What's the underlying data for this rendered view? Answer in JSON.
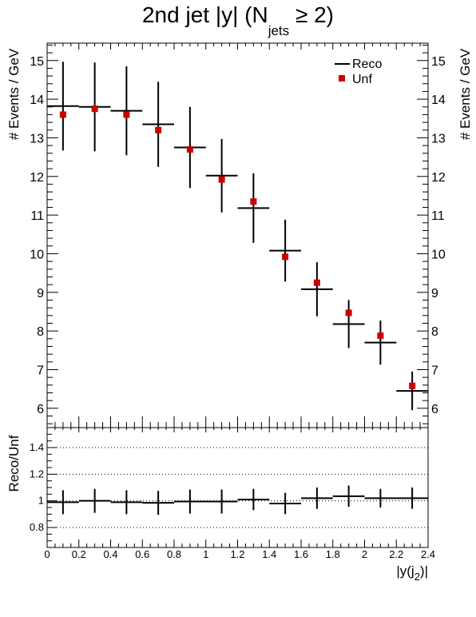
{
  "chart_data": {
    "type": "scatter",
    "title": {
      "prefix": "2nd jet |y| (N",
      "sub": "jets",
      "suffix": " ≥ 2)"
    },
    "xlabel": {
      "prefix": "|y(j",
      "sub": "2",
      "suffix": ")|"
    },
    "ylabel": "# Events / GeV",
    "ratio_ylabel": "Reco/Unf",
    "xlim": [
      0,
      2.4
    ],
    "ylim": [
      5.5,
      15.45
    ],
    "ratio_ylim": [
      0.65,
      1.55
    ],
    "x_ticks": [
      "0",
      "0.2",
      "0.4",
      "0.6",
      "0.8",
      "1",
      "1.2",
      "1.4",
      "1.6",
      "1.8",
      "2",
      "2.2",
      "2.4"
    ],
    "y_ticks": [
      "6",
      "7",
      "8",
      "9",
      "10",
      "11",
      "12",
      "13",
      "14",
      "15"
    ],
    "ratio_y_ticks": [
      "0.8",
      "1",
      "1.2",
      "1.4"
    ],
    "legend": {
      "position": "top-right",
      "entries": [
        "Reco",
        "Unf"
      ]
    },
    "colors": {
      "reco": "#000000",
      "unf": "#cc0000"
    },
    "bin_edges": [
      0,
      0.2,
      0.4,
      0.6,
      0.8,
      1.0,
      1.2,
      1.4,
      1.6,
      1.8,
      2.0,
      2.2,
      2.4
    ],
    "series": [
      {
        "name": "Reco",
        "values": [
          13.82,
          13.8,
          13.7,
          13.35,
          12.75,
          12.02,
          11.18,
          10.08,
          9.08,
          8.18,
          7.7,
          6.45
        ],
        "err": [
          1.15,
          1.15,
          1.15,
          1.1,
          1.05,
          0.95,
          0.9,
          0.8,
          0.7,
          0.62,
          0.57,
          0.5
        ]
      },
      {
        "name": "Unf",
        "values": [
          13.6,
          13.75,
          13.6,
          13.2,
          12.7,
          11.92,
          11.35,
          9.92,
          9.25,
          8.47,
          7.88,
          6.58
        ],
        "err": [
          0,
          0,
          0,
          0,
          0,
          0,
          0,
          0,
          0,
          0,
          0,
          0
        ]
      }
    ],
    "ratio": {
      "values": [
        0.99,
        1.0,
        0.99,
        0.985,
        0.995,
        0.995,
        1.01,
        0.98,
        1.02,
        1.035,
        1.02,
        1.02
      ],
      "err": [
        0.09,
        0.09,
        0.09,
        0.09,
        0.09,
        0.09,
        0.08,
        0.08,
        0.08,
        0.08,
        0.07,
        0.08
      ]
    }
  }
}
